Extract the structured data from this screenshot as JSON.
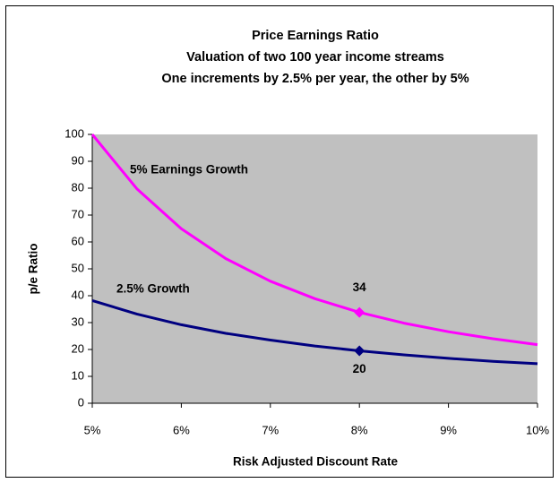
{
  "chart_data": {
    "type": "line",
    "title": [
      "Price Earnings Ratio",
      "Valuation of two 100 year income streams",
      "One increments by 2.5% per year, the other by 5%"
    ],
    "x_label": "Risk Adjusted Discount Rate",
    "y_label": "p/e Ratio",
    "x": [
      5,
      5.5,
      6,
      6.5,
      7,
      7.5,
      8,
      8.5,
      9,
      9.5,
      10
    ],
    "series": [
      {
        "name": "5% Earnings Growth",
        "color": "#ff00ff",
        "values": [
          100,
          79.8,
          64.9,
          53.8,
          45.4,
          38.9,
          33.8,
          29.8,
          26.6,
          24.0,
          21.8
        ],
        "value_labels": [
          null,
          null,
          null,
          null,
          null,
          null,
          "34",
          null,
          null,
          null,
          null
        ]
      },
      {
        "name": "2.5% Growth",
        "color": "#000080",
        "values": [
          38.2,
          33.2,
          29.2,
          26.0,
          23.5,
          21.3,
          19.5,
          18.0,
          16.7,
          15.6,
          14.7
        ],
        "value_labels": [
          null,
          null,
          null,
          null,
          null,
          null,
          "20",
          null,
          null,
          null,
          null
        ]
      }
    ],
    "xlim": [
      5,
      10
    ],
    "xticks": [
      {
        "value": 5,
        "label": "5%"
      },
      {
        "value": 6,
        "label": "6%"
      },
      {
        "value": 7,
        "label": "7%"
      },
      {
        "value": 8,
        "label": "8%"
      },
      {
        "value": 9,
        "label": "9%"
      },
      {
        "value": 10,
        "label": "10%"
      }
    ],
    "ylim": [
      0,
      100
    ],
    "yticks": [
      0,
      10,
      20,
      30,
      40,
      50,
      60,
      70,
      80,
      90,
      100
    ],
    "plot_background": "#c0c0c0",
    "grid": false
  }
}
